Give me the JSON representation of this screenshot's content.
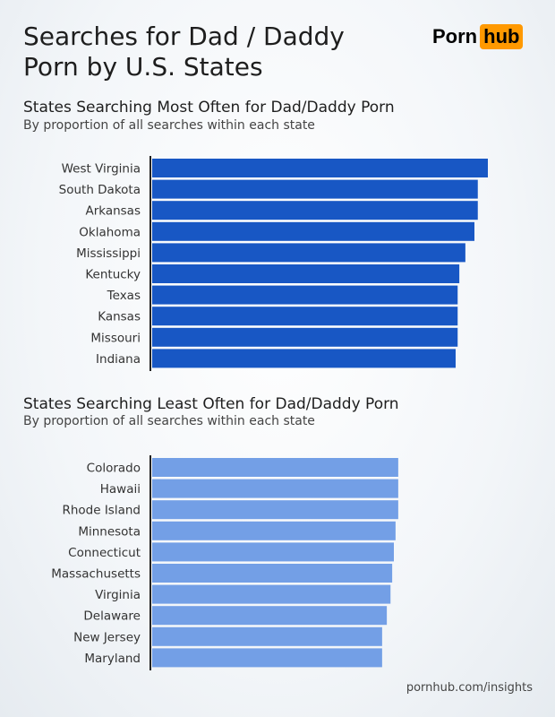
{
  "title_line1": "Searches for Dad / Daddy",
  "title_line2": "Porn by U.S. States",
  "logo": {
    "left": "Porn",
    "right": "hub",
    "accent": "#ff9900"
  },
  "footer": "pornhub.com/insights",
  "chart_data": [
    {
      "type": "bar",
      "orientation": "horizontal",
      "title": "States Searching Most Often for Dad/Daddy Porn",
      "subtitle": "By proportion of all searches within each state",
      "color": "#1857c4",
      "value_note": "relative index, West Virginia = 100 (no axis printed)",
      "categories": [
        "West Virginia",
        "South Dakota",
        "Arkansas",
        "Oklahoma",
        "Mississippi",
        "Kentucky",
        "Texas",
        "Kansas",
        "Missouri",
        "Indiana"
      ],
      "values": [
        100,
        97,
        97,
        96,
        93.3,
        91.5,
        91,
        91,
        91,
        90.4
      ]
    },
    {
      "type": "bar",
      "orientation": "horizontal",
      "title": "States Searching Least Often for Dad/Daddy Porn",
      "subtitle": "By proportion of all searches within each state",
      "color": "#739fe6",
      "value_note": "relative index, West Virginia = 100 (no axis printed)",
      "categories": [
        "Colorado",
        "Hawaii",
        "Rhode Island",
        "Minnesota",
        "Connecticut",
        "Massachusetts",
        "Virginia",
        "Delaware",
        "New Jersey",
        "Maryland"
      ],
      "values": [
        73.3,
        73.3,
        73.3,
        72.5,
        72,
        71.5,
        71,
        69.9,
        68.5,
        68.5
      ]
    }
  ]
}
